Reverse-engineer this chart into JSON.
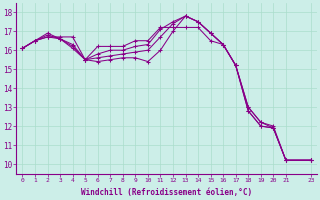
{
  "xlabel": "Windchill (Refroidissement éolien,°C)",
  "bg_color": "#cceee8",
  "grid_color": "#aaddcc",
  "line_color": "#880088",
  "xlim": [
    -0.5,
    23.5
  ],
  "ylim": [
    9.5,
    18.5
  ],
  "xtick_positions": [
    0,
    1,
    2,
    3,
    4,
    5,
    6,
    7,
    8,
    9,
    10,
    11,
    12,
    13,
    14,
    15,
    16,
    17,
    18,
    19,
    20,
    21,
    23
  ],
  "xtick_labels": [
    "0",
    "1",
    "2",
    "3",
    "4",
    "5",
    "6",
    "7",
    "8",
    "9",
    "10",
    "11",
    "12",
    "13",
    "14",
    "15",
    "16",
    "17",
    "18",
    "19",
    "20",
    "21",
    "23"
  ],
  "yticks": [
    10,
    11,
    12,
    13,
    14,
    15,
    16,
    17,
    18
  ],
  "series": [
    {
      "x": [
        0,
        1,
        2,
        3,
        4,
        5,
        6,
        7,
        8,
        9,
        10,
        11,
        12,
        13,
        14,
        15,
        16,
        17,
        18,
        19,
        20,
        21,
        23
      ],
      "y": [
        16.1,
        16.5,
        16.7,
        16.7,
        16.7,
        15.5,
        16.2,
        16.2,
        16.2,
        16.5,
        16.5,
        17.2,
        17.2,
        17.2,
        17.2,
        16.5,
        16.3,
        15.2,
        12.8,
        12.0,
        11.9,
        10.2,
        10.2
      ]
    },
    {
      "x": [
        0,
        1,
        2,
        3,
        4,
        5,
        6,
        7,
        8,
        9,
        10,
        11,
        12,
        13,
        14,
        15,
        16,
        17,
        18,
        19,
        20,
        21,
        23
      ],
      "y": [
        16.1,
        16.5,
        16.7,
        16.6,
        16.3,
        15.5,
        15.8,
        16.0,
        16.0,
        16.2,
        16.3,
        17.1,
        17.5,
        17.8,
        17.5,
        16.9,
        16.3,
        15.2,
        12.8,
        12.0,
        11.9,
        10.2,
        10.2
      ]
    },
    {
      "x": [
        0,
        1,
        2,
        3,
        4,
        5,
        6,
        7,
        8,
        9,
        10,
        11,
        12,
        13,
        14,
        15,
        16,
        17,
        18,
        19,
        20,
        21,
        23
      ],
      "y": [
        16.1,
        16.5,
        16.8,
        16.6,
        16.2,
        15.5,
        15.6,
        15.7,
        15.8,
        15.9,
        16.0,
        16.7,
        17.4,
        17.8,
        17.5,
        16.9,
        16.3,
        15.2,
        13.0,
        12.2,
        11.9,
        10.2,
        10.2
      ]
    },
    {
      "x": [
        0,
        1,
        2,
        3,
        4,
        5,
        6,
        7,
        8,
        9,
        10,
        11,
        12,
        13,
        14,
        15,
        16,
        17,
        18,
        19,
        20,
        21,
        23
      ],
      "y": [
        16.1,
        16.5,
        16.9,
        16.6,
        16.1,
        15.5,
        15.4,
        15.5,
        15.6,
        15.6,
        15.4,
        16.0,
        17.0,
        17.8,
        17.5,
        16.9,
        16.3,
        15.2,
        13.0,
        12.2,
        12.0,
        10.2,
        10.2
      ]
    }
  ]
}
